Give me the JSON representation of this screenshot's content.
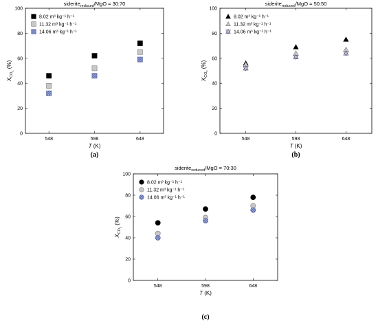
{
  "chart_data": [
    {
      "type": "scatter",
      "panel_label": "(a)",
      "title_main": "siderite",
      "title_sub": "reduced",
      "title_rest": "/MgO = 30:70",
      "xlabel": "T (K)",
      "ylabel_main": "X",
      "ylabel_sub": "CO",
      "ylabel_subsub": "2",
      "ylabel_unit": " (%)",
      "categories": [
        "548",
        "598",
        "648"
      ],
      "ylim": [
        0,
        100
      ],
      "yticks": [
        "0",
        "20",
        "40",
        "60",
        "80",
        "100"
      ],
      "legend_position": "top-left",
      "marker_base": "square",
      "series": [
        {
          "name": "8.02 m³ kg⁻¹ h⁻¹",
          "style": "solid",
          "values": [
            46,
            62,
            72
          ]
        },
        {
          "name": "11.32 m³ kg⁻¹ h⁻¹",
          "style": "gray",
          "values": [
            38,
            52,
            65
          ]
        },
        {
          "name": "14.06 m³ kg⁻¹ h⁻¹",
          "style": "hatched",
          "values": [
            32,
            46,
            59
          ]
        }
      ]
    },
    {
      "type": "scatter",
      "panel_label": "(b)",
      "title_main": "siderite",
      "title_sub": "reduced",
      "title_rest": "/MgO = 50:50",
      "xlabel": "T (K)",
      "ylabel_main": "X",
      "ylabel_sub": "CO",
      "ylabel_subsub": "2",
      "ylabel_unit": " (%)",
      "categories": [
        "548",
        "598",
        "648"
      ],
      "ylim": [
        0,
        100
      ],
      "yticks": [
        "0",
        "20",
        "40",
        "60",
        "80",
        "100"
      ],
      "legend_position": "top-left",
      "marker_base": "triangle",
      "series": [
        {
          "name": "8.02 m³ kg⁻¹ h⁻¹",
          "style": "solid",
          "values": [
            56,
            69,
            75
          ]
        },
        {
          "name": "11.32 m³ kg⁻¹ h⁻¹",
          "style": "gray",
          "values": [
            55,
            64,
            67
          ]
        },
        {
          "name": "14.06 m³ kg⁻¹ h⁻¹",
          "style": "star",
          "values": [
            52,
            61,
            64
          ]
        }
      ]
    },
    {
      "type": "scatter",
      "panel_label": "(c)",
      "title_main": "siderite",
      "title_sub": "reduced",
      "title_rest": "/MgO = 70:30",
      "xlabel": "T (K)",
      "ylabel_main": "X",
      "ylabel_sub": "CO",
      "ylabel_subsub": "2",
      "ylabel_unit": " (%)",
      "categories": [
        "548",
        "598",
        "648"
      ],
      "ylim": [
        0,
        100
      ],
      "yticks": [
        "0",
        "20",
        "40",
        "60",
        "80",
        "100"
      ],
      "legend_position": "top-left",
      "marker_base": "circle",
      "series": [
        {
          "name": "8.02 m³ kg⁻¹ h⁻¹",
          "style": "solid",
          "values": [
            54,
            67,
            78
          ]
        },
        {
          "name": "11.32 m³ kg⁻¹ h⁻¹",
          "style": "gray",
          "values": [
            44,
            59,
            70
          ]
        },
        {
          "name": "14.06 m³ kg⁻¹ h⁻¹",
          "style": "hatched",
          "values": [
            40,
            56,
            66
          ]
        }
      ]
    }
  ],
  "colors": {
    "solid": "#000000",
    "gray_fill": "#c8c8c8",
    "gray_stroke": "#777777",
    "hatch_fill": "#a8b6e2",
    "hatch_stroke": "#4a5a9a"
  }
}
